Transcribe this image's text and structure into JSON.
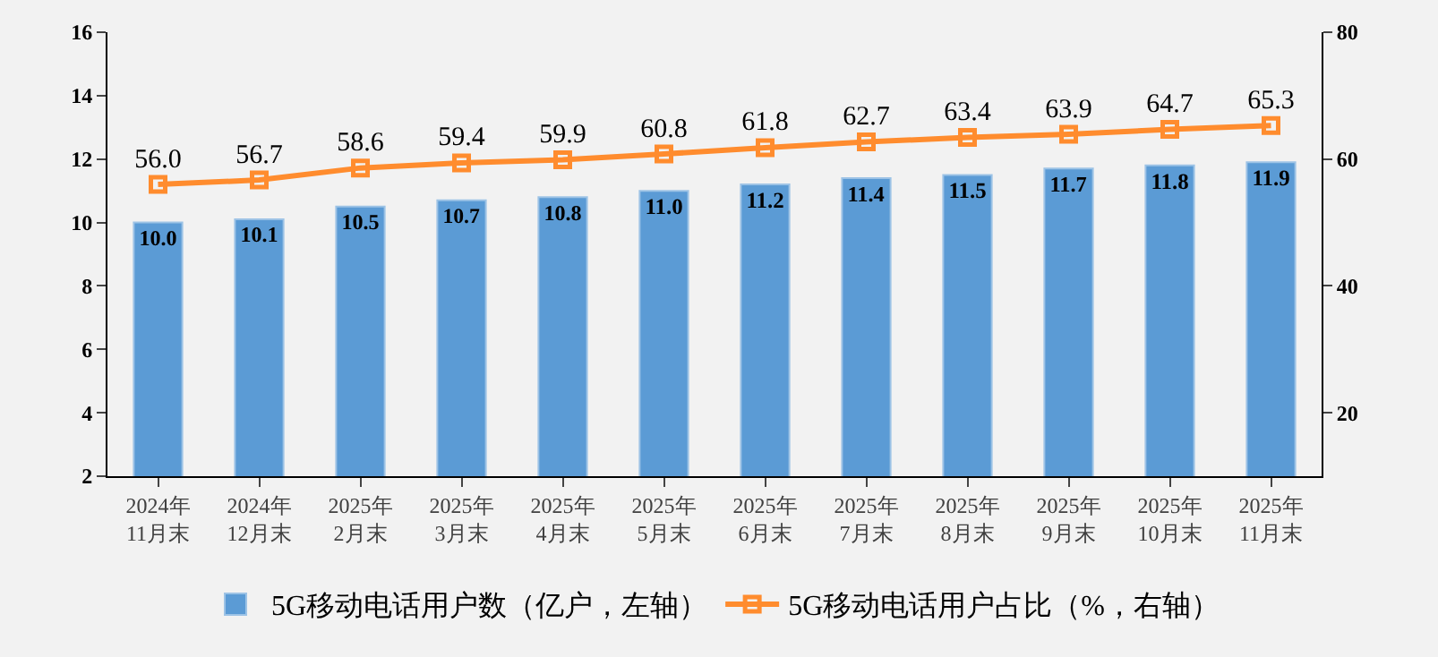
{
  "chart_data": {
    "type": "bar",
    "categories": [
      "2024年\n11月末",
      "2024年\n12月末",
      "2025年\n2月末",
      "2025年\n3月末",
      "2025年\n4月末",
      "2025年\n5月末",
      "2025年\n6月末",
      "2025年\n7月末",
      "2025年\n8月末",
      "2025年\n9月末",
      "2025年\n10月末",
      "2025年\n11月末"
    ],
    "series": [
      {
        "name": "5G移动电话用户数（亿户，左轴）",
        "color": "#5b9bd5",
        "values": [
          10.0,
          10.1,
          10.5,
          10.7,
          10.8,
          11.0,
          11.2,
          11.4,
          11.5,
          11.7,
          11.8,
          11.9
        ],
        "value_labels": [
          "10.0",
          "10.1",
          "10.5",
          "10.7",
          "10.8",
          "11.0",
          "11.2",
          "11.4",
          "11.5",
          "11.7",
          "11.8",
          "11.9"
        ]
      },
      {
        "name": "5G移动电话用户占比（%，右轴）",
        "type": "line",
        "axis": "y2",
        "color": "#ff8c2e",
        "marker": "square",
        "values": [
          56.0,
          56.7,
          58.6,
          59.4,
          59.9,
          60.8,
          61.8,
          62.7,
          63.4,
          63.9,
          64.7,
          65.3
        ],
        "value_labels": [
          "56.0",
          "56.7",
          "58.6",
          "59.4",
          "59.9",
          "60.8",
          "61.8",
          "62.7",
          "63.4",
          "63.9",
          "64.7",
          "65.3"
        ]
      }
    ],
    "ylim": [
      2,
      16
    ],
    "yticks": [
      2,
      4,
      6,
      8,
      10,
      12,
      14,
      16
    ],
    "y2lim": [
      10,
      80
    ],
    "y2ticks": [
      20,
      40,
      60,
      80
    ],
    "grid": false,
    "legend": "bottom"
  }
}
